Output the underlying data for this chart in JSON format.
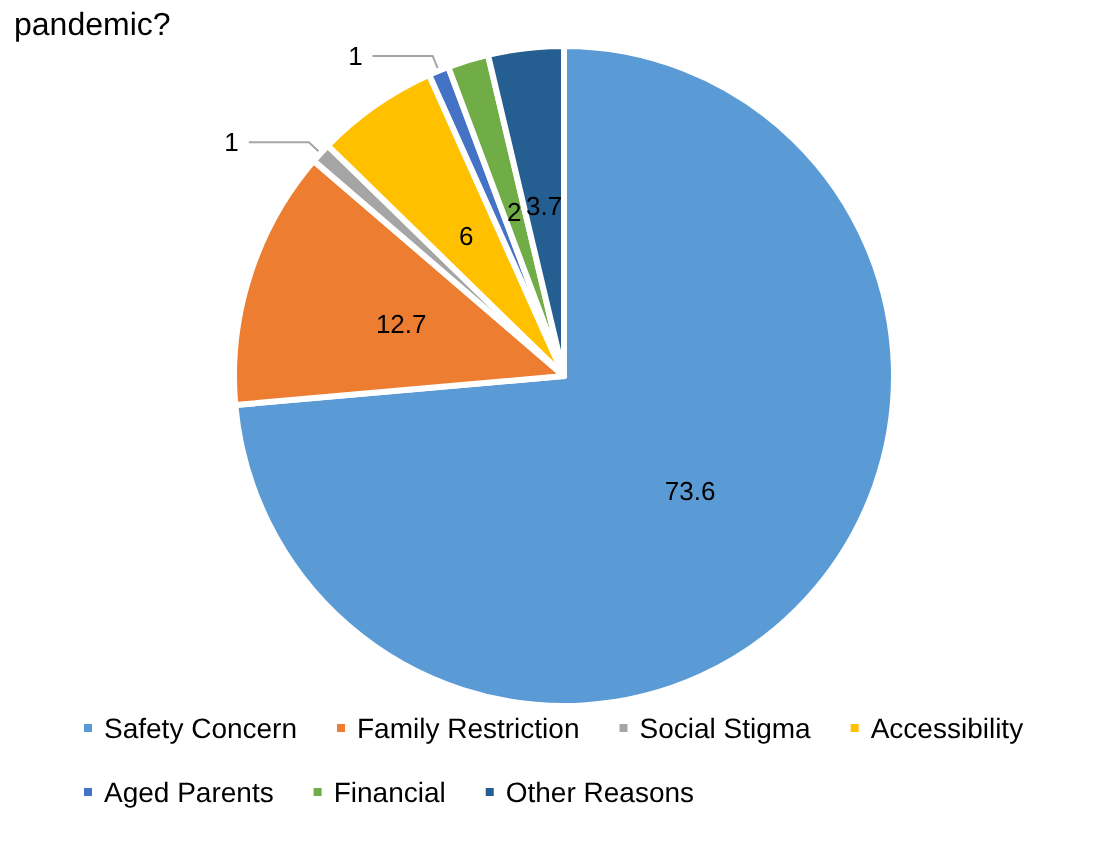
{
  "chart_data": {
    "type": "pie",
    "title": "pandemic?",
    "categories": [
      "Safety Concern",
      "Family Restriction",
      "Social Stigma",
      "Accessibility",
      "Aged Parents",
      "Financial",
      "Other Reasons"
    ],
    "values": [
      73.6,
      12.7,
      1,
      6,
      1,
      2,
      3.7
    ],
    "colors": [
      "#5b9bd5",
      "#ed7d31",
      "#a5a5a5",
      "#ffc000",
      "#4472c4",
      "#70ad47",
      "#255e91"
    ],
    "data_labels": true,
    "legend": "bottom"
  }
}
